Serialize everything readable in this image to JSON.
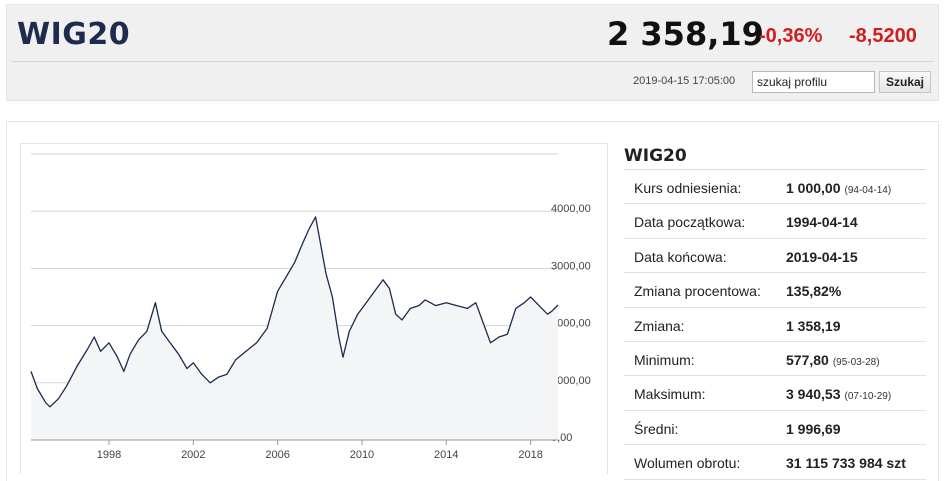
{
  "header": {
    "index_name": "WIG20",
    "price": "2 358,19",
    "change_pct": "-0,36%",
    "change_abs": "-8,5200",
    "timestamp": "2019-04-15 17:05:00",
    "search_value": "szukaj profilu",
    "search_button": "Szukaj"
  },
  "colors": {
    "brand": "#1f2a4f",
    "negative": "#d41c1c",
    "chart_line": "#1b2a4e",
    "chart_fill": "#f4f5f7"
  },
  "chart_data": {
    "type": "line",
    "y_ticks": [
      "4000,00",
      "3000,00",
      "2000,00",
      "1000,00",
      "0,00"
    ],
    "x_ticks": [
      "1998",
      "2002",
      "2006",
      "2010",
      "2014",
      "2018"
    ],
    "ylim": [
      0,
      5000
    ],
    "xlim": [
      1994.3,
      2019.3
    ],
    "grid": true,
    "series": [
      {
        "x": [
          1994.3,
          1994.6,
          1995.0,
          1995.2,
          1995.6,
          1996.0,
          1996.5,
          1997.0,
          1997.3,
          1997.6,
          1998.0,
          1998.4,
          1998.7,
          1999.0,
          1999.4,
          1999.8,
          2000.2,
          2000.5,
          2000.9,
          2001.3,
          2001.7,
          2002.0,
          2002.4,
          2002.8,
          2003.2,
          2003.6,
          2004.0,
          2004.5,
          2005.0,
          2005.5,
          2006.0,
          2006.4,
          2006.8,
          2007.2,
          2007.5,
          2007.8,
          2008.0,
          2008.3,
          2008.6,
          2008.9,
          2009.1,
          2009.4,
          2009.8,
          2010.2,
          2010.6,
          2011.0,
          2011.3,
          2011.6,
          2011.9,
          2012.3,
          2012.7,
          2013.0,
          2013.5,
          2014.0,
          2014.5,
          2015.0,
          2015.4,
          2015.8,
          2016.1,
          2016.5,
          2016.9,
          2017.3,
          2017.7,
          2018.0,
          2018.4,
          2018.8,
          2019.0,
          2019.3
        ],
        "y": [
          1200,
          900,
          650,
          580,
          720,
          950,
          1300,
          1600,
          1800,
          1550,
          1700,
          1450,
          1200,
          1500,
          1750,
          1900,
          2400,
          1900,
          1700,
          1500,
          1250,
          1350,
          1150,
          1000,
          1100,
          1150,
          1400,
          1550,
          1700,
          1950,
          2600,
          2850,
          3100,
          3450,
          3700,
          3900,
          3500,
          2900,
          2500,
          1800,
          1450,
          1900,
          2200,
          2400,
          2600,
          2800,
          2650,
          2200,
          2100,
          2300,
          2350,
          2450,
          2350,
          2400,
          2350,
          2300,
          2400,
          2000,
          1700,
          1800,
          1850,
          2300,
          2400,
          2500,
          2350,
          2200,
          2250,
          2360
        ]
      }
    ]
  },
  "info": {
    "title": "WIG20",
    "rows": [
      {
        "label": "Kurs odniesienia:",
        "value": "1 000,00",
        "sub": "(94-04-14)"
      },
      {
        "label": "Data początkowa:",
        "value": "1994-04-14",
        "sub": ""
      },
      {
        "label": "Data końcowa:",
        "value": "2019-04-15",
        "sub": ""
      },
      {
        "label": "Zmiana procentowa:",
        "value": "135,82%",
        "sub": ""
      },
      {
        "label": "Zmiana:",
        "value": "1 358,19",
        "sub": ""
      },
      {
        "label": "Minimum:",
        "value": "577,80",
        "sub": "(95-03-28)"
      },
      {
        "label": "Maksimum:",
        "value": "3 940,53",
        "sub": "(07-10-29)"
      },
      {
        "label": "Średni:",
        "value": "1 996,69",
        "sub": ""
      },
      {
        "label": "Wolumen obrotu:",
        "value": "31 115 733 984 szt",
        "sub": ""
      }
    ]
  }
}
